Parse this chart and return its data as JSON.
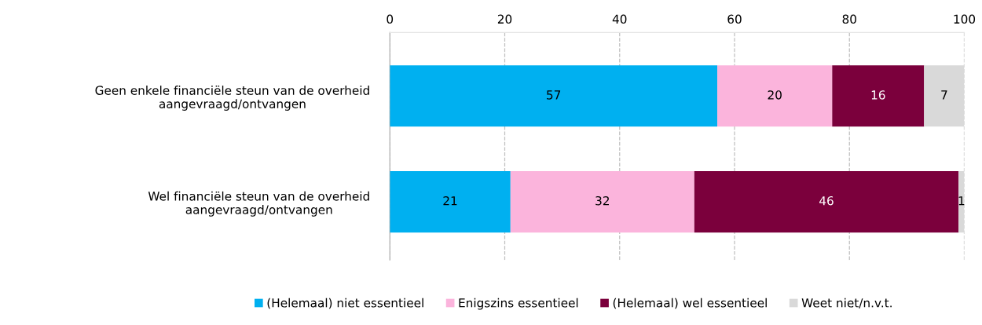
{
  "chart_data": {
    "type": "bar",
    "orientation": "horizontal",
    "stacked": true,
    "categories": [
      "Geen enkele financiële steun van de overheid\naangevraagd/ontvangen",
      "Wel financiële steun van de overheid\naangevraagd/ontvangen"
    ],
    "series": [
      {
        "name": "(Helemaal) niet essentieel",
        "color": "#00b0f0",
        "values": [
          57,
          21
        ]
      },
      {
        "name": "Enigszins essentieel",
        "color": "#fbb4dc",
        "values": [
          20,
          32
        ]
      },
      {
        "name": "(Helemaal) wel essentieel",
        "color": "#7b003c",
        "values": [
          16,
          46
        ]
      },
      {
        "name": "Weet niet/n.v.t.",
        "color": "#d9d9d9",
        "values": [
          7,
          1
        ]
      }
    ],
    "xlim": [
      0,
      100
    ],
    "xticks": [
      0,
      20,
      40,
      60,
      80,
      100
    ],
    "grid": "x",
    "legend": "bottom",
    "data_labels": true
  }
}
